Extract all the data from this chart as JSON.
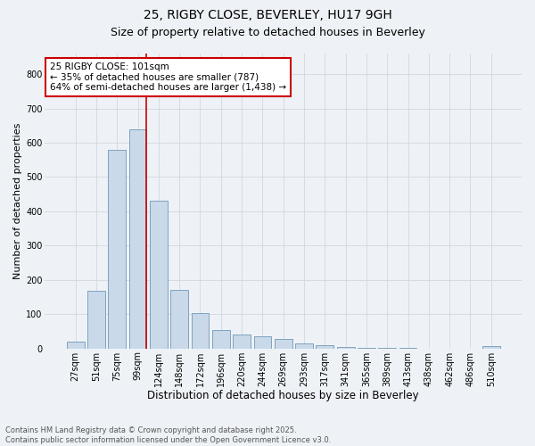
{
  "title1": "25, RIGBY CLOSE, BEVERLEY, HU17 9GH",
  "title2": "Size of property relative to detached houses in Beverley",
  "xlabel": "Distribution of detached houses by size in Beverley",
  "ylabel": "Number of detached properties",
  "bar_labels": [
    "27sqm",
    "51sqm",
    "75sqm",
    "99sqm",
    "124sqm",
    "148sqm",
    "172sqm",
    "196sqm",
    "220sqm",
    "244sqm",
    "269sqm",
    "293sqm",
    "317sqm",
    "341sqm",
    "365sqm",
    "389sqm",
    "413sqm",
    "438sqm",
    "462sqm",
    "486sqm",
    "510sqm"
  ],
  "bar_values": [
    20,
    168,
    578,
    640,
    432,
    170,
    102,
    55,
    42,
    36,
    29,
    16,
    10,
    4,
    3,
    2,
    1,
    0,
    0,
    0,
    7
  ],
  "bar_color": "#c9d9ea",
  "bar_edgecolor": "#7098b8",
  "vline_index": 3,
  "vline_color": "#cc0000",
  "annotation_text": "25 RIGBY CLOSE: 101sqm\n← 35% of detached houses are smaller (787)\n64% of semi-detached houses are larger (1,438) →",
  "annotation_box_edgecolor": "#cc0000",
  "annotation_box_facecolor": "#ffffff",
  "ylim": [
    0,
    860
  ],
  "yticks": [
    0,
    100,
    200,
    300,
    400,
    500,
    600,
    700,
    800
  ],
  "grid_color": "#d0d8e0",
  "bg_color": "#eef2f6",
  "footer_text": "Contains HM Land Registry data © Crown copyright and database right 2025.\nContains public sector information licensed under the Open Government Licence v3.0.",
  "title1_fontsize": 10,
  "title2_fontsize": 9,
  "xlabel_fontsize": 8.5,
  "ylabel_fontsize": 8,
  "tick_fontsize": 7,
  "annotation_fontsize": 7.5,
  "footer_fontsize": 6
}
